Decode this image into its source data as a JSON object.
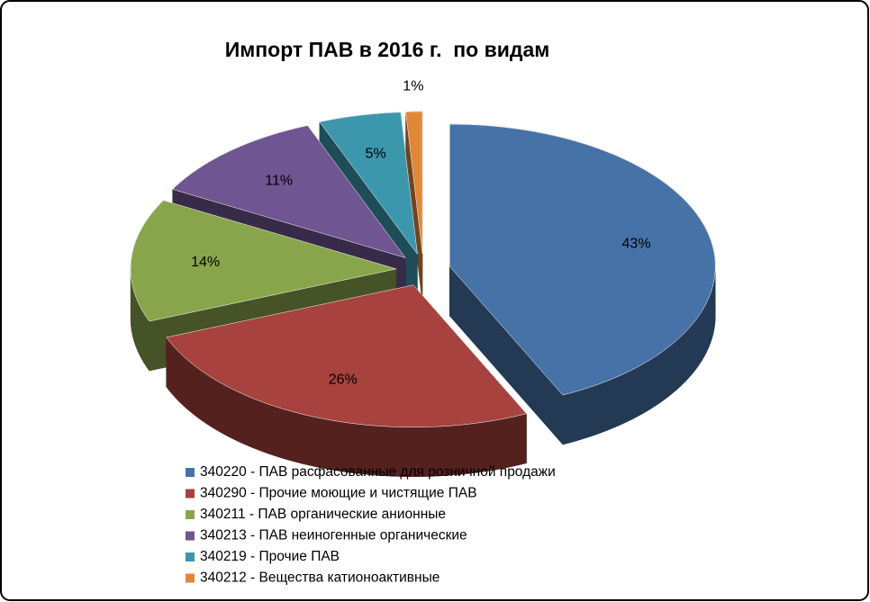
{
  "chart_data": {
    "type": "pie3d",
    "title": "Импорт ПАВ в 2016 г.  по видам",
    "categories": [
      "340220 - ПАВ расфасованные для  розничной продажи",
      "340290 - Прочие моющие и чистящие ПАВ",
      "340211 - ПАВ органические анионные",
      "340213 - ПАВ неиногенные органические",
      "340219 - Прочие ПАВ",
      "340212 - Вещества катионоактивные"
    ],
    "values": [
      43,
      26,
      14,
      11,
      5,
      1
    ],
    "value_labels": [
      "43%",
      "26%",
      "14%",
      "11%",
      "5%",
      "1%"
    ],
    "colors": [
      "#4672a8",
      "#a7423e",
      "#89a54c",
      "#6f5591",
      "#3c97ad",
      "#e0883a"
    ],
    "legend": "bottom"
  }
}
